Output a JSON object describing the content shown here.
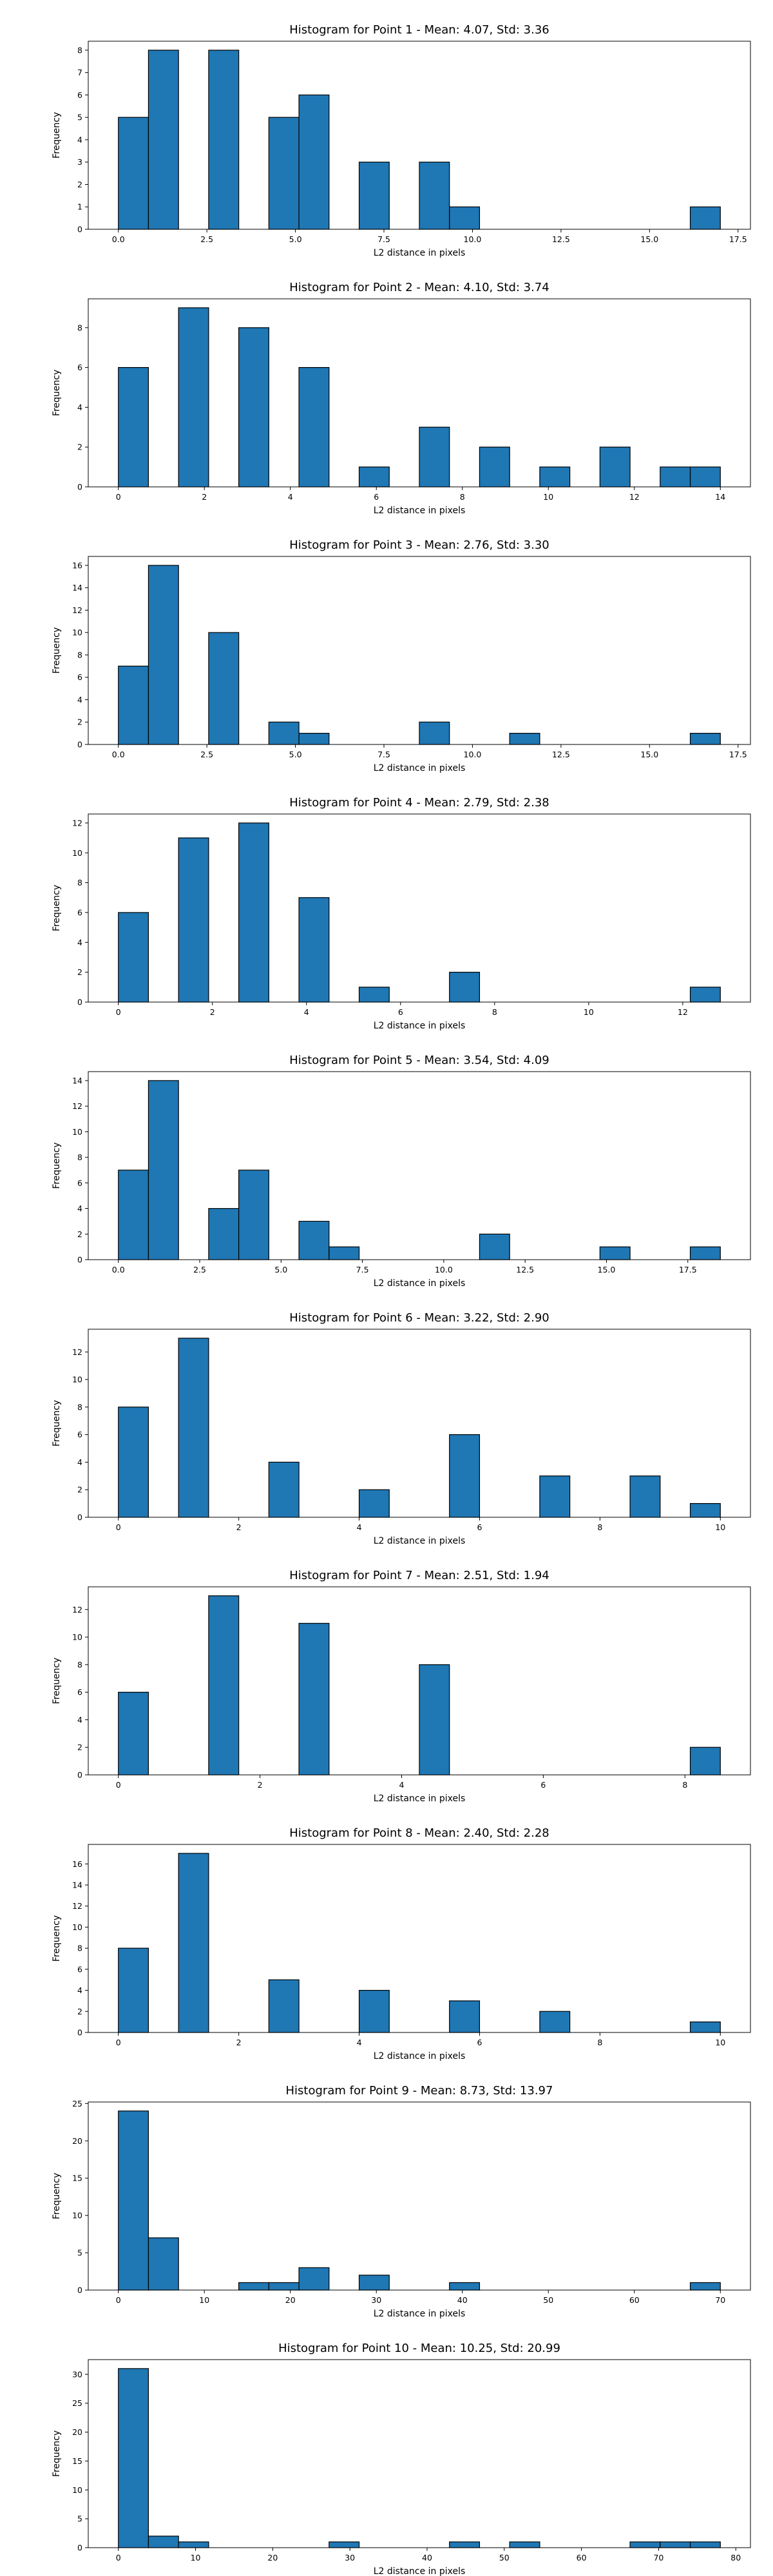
{
  "bar_color": "#1f77b4",
  "edge_color": "#000000",
  "chart_data": [
    {
      "type": "bar",
      "title": "Histogram for Point 1 - Mean: 4.07, Std: 3.36",
      "xlabel": "L2 distance in pixels",
      "ylabel": "Frequency",
      "xlim": [
        -0.85,
        17.85
      ],
      "ylim": [
        0,
        8.4
      ],
      "xticks": [
        0,
        2.5,
        5,
        7.5,
        10,
        12.5,
        15,
        17.5
      ],
      "xtick_labels": [
        "0.0",
        "2.5",
        "5.0",
        "7.5",
        "10.0",
        "12.5",
        "15.0",
        "17.5"
      ],
      "yticks": [
        0,
        1,
        2,
        3,
        4,
        5,
        6,
        7,
        8
      ],
      "bins": [
        [
          0,
          0.85,
          5
        ],
        [
          0.85,
          1.7,
          8
        ],
        [
          2.55,
          3.4,
          8
        ],
        [
          4.25,
          5.1,
          5
        ],
        [
          5.1,
          5.95,
          6
        ],
        [
          6.8,
          7.65,
          3
        ],
        [
          8.5,
          9.35,
          3
        ],
        [
          9.35,
          10.2,
          1
        ],
        [
          16.15,
          17.0,
          1
        ]
      ]
    },
    {
      "type": "bar",
      "title": "Histogram for Point 2 - Mean: 4.10, Std: 3.74",
      "xlabel": "L2 distance in pixels",
      "ylabel": "Frequency",
      "xlim": [
        -0.7,
        14.7
      ],
      "ylim": [
        0,
        9.45
      ],
      "xticks": [
        0,
        2,
        4,
        6,
        8,
        10,
        12,
        14
      ],
      "xtick_labels": [
        "0",
        "2",
        "4",
        "6",
        "8",
        "10",
        "12",
        "14"
      ],
      "yticks": [
        0,
        2,
        4,
        6,
        8
      ],
      "bins": [
        [
          0,
          0.7,
          6
        ],
        [
          1.4,
          2.1,
          9
        ],
        [
          2.8,
          3.5,
          8
        ],
        [
          4.2,
          4.9,
          6
        ],
        [
          5.6,
          6.3,
          1
        ],
        [
          7.0,
          7.7,
          3
        ],
        [
          8.4,
          9.1,
          2
        ],
        [
          9.8,
          10.5,
          1
        ],
        [
          11.2,
          11.9,
          2
        ],
        [
          12.6,
          13.3,
          1
        ],
        [
          13.3,
          14.0,
          1
        ]
      ]
    },
    {
      "type": "bar",
      "title": "Histogram for Point 3 - Mean: 2.76, Std: 3.30",
      "xlabel": "L2 distance in pixels",
      "ylabel": "Frequency",
      "xlim": [
        -0.85,
        17.85
      ],
      "ylim": [
        0,
        16.8
      ],
      "xticks": [
        0,
        2.5,
        5,
        7.5,
        10,
        12.5,
        15,
        17.5
      ],
      "xtick_labels": [
        "0.0",
        "2.5",
        "5.0",
        "7.5",
        "10.0",
        "12.5",
        "15.0",
        "17.5"
      ],
      "yticks": [
        0,
        2,
        4,
        6,
        8,
        10,
        12,
        14,
        16
      ],
      "bins": [
        [
          0,
          0.85,
          7
        ],
        [
          0.85,
          1.7,
          16
        ],
        [
          2.55,
          3.4,
          10
        ],
        [
          4.25,
          5.1,
          2
        ],
        [
          5.1,
          5.95,
          1
        ],
        [
          8.5,
          9.35,
          2
        ],
        [
          11.05,
          11.9,
          1
        ],
        [
          16.15,
          17.0,
          1
        ]
      ]
    },
    {
      "type": "bar",
      "title": "Histogram for Point 4 - Mean: 2.79, Std: 2.38",
      "xlabel": "L2 distance in pixels",
      "ylabel": "Frequency",
      "xlim": [
        -0.64,
        13.44
      ],
      "ylim": [
        0,
        12.6
      ],
      "xticks": [
        0,
        2,
        4,
        6,
        8,
        10,
        12
      ],
      "xtick_labels": [
        "0",
        "2",
        "4",
        "6",
        "8",
        "10",
        "12"
      ],
      "yticks": [
        0,
        2,
        4,
        6,
        8,
        10,
        12
      ],
      "bins": [
        [
          0,
          0.64,
          6
        ],
        [
          1.28,
          1.92,
          11
        ],
        [
          2.56,
          3.2,
          12
        ],
        [
          3.84,
          4.48,
          7
        ],
        [
          5.12,
          5.76,
          1
        ],
        [
          7.04,
          7.68,
          2
        ],
        [
          12.16,
          12.8,
          1
        ]
      ]
    },
    {
      "type": "bar",
      "title": "Histogram for Point 5 - Mean: 3.54, Std: 4.09",
      "xlabel": "L2 distance in pixels",
      "ylabel": "Frequency",
      "xlim": [
        -0.925,
        19.425
      ],
      "ylim": [
        0,
        14.7
      ],
      "xticks": [
        0,
        2.5,
        5,
        7.5,
        10,
        12.5,
        15,
        17.5
      ],
      "xtick_labels": [
        "0.0",
        "2.5",
        "5.0",
        "7.5",
        "10.0",
        "12.5",
        "15.0",
        "17.5"
      ],
      "yticks": [
        0,
        2,
        4,
        6,
        8,
        10,
        12,
        14
      ],
      "bins": [
        [
          0,
          0.925,
          7
        ],
        [
          0.925,
          1.85,
          14
        ],
        [
          2.775,
          3.7,
          4
        ],
        [
          3.7,
          4.625,
          7
        ],
        [
          5.55,
          6.475,
          3
        ],
        [
          6.475,
          7.4,
          1
        ],
        [
          11.1,
          12.025,
          2
        ],
        [
          14.8,
          15.725,
          1
        ],
        [
          17.575,
          18.5,
          1
        ]
      ]
    },
    {
      "type": "bar",
      "title": "Histogram for Point 6 - Mean: 3.22, Std: 2.90",
      "xlabel": "L2 distance in pixels",
      "ylabel": "Frequency",
      "xlim": [
        -0.5,
        10.5
      ],
      "ylim": [
        0,
        13.65
      ],
      "xticks": [
        0,
        2,
        4,
        6,
        8,
        10
      ],
      "xtick_labels": [
        "0",
        "2",
        "4",
        "6",
        "8",
        "10"
      ],
      "yticks": [
        0,
        2,
        4,
        6,
        8,
        10,
        12
      ],
      "bins": [
        [
          0,
          0.5,
          8
        ],
        [
          1.0,
          1.5,
          13
        ],
        [
          2.5,
          3.0,
          4
        ],
        [
          4.0,
          4.5,
          2
        ],
        [
          5.5,
          6.0,
          6
        ],
        [
          7.0,
          7.5,
          3
        ],
        [
          8.5,
          9.0,
          3
        ],
        [
          9.5,
          10.0,
          1
        ]
      ]
    },
    {
      "type": "bar",
      "title": "Histogram for Point 7 - Mean: 2.51, Std: 1.94",
      "xlabel": "L2 distance in pixels",
      "ylabel": "Frequency",
      "xlim": [
        -0.425,
        8.925
      ],
      "ylim": [
        0,
        13.65
      ],
      "xticks": [
        0,
        2,
        4,
        6,
        8
      ],
      "xtick_labels": [
        "0",
        "2",
        "4",
        "6",
        "8"
      ],
      "yticks": [
        0,
        2,
        4,
        6,
        8,
        10,
        12
      ],
      "bins": [
        [
          0,
          0.425,
          6
        ],
        [
          1.275,
          1.7,
          13
        ],
        [
          2.55,
          2.975,
          11
        ],
        [
          4.25,
          4.675,
          8
        ],
        [
          8.075,
          8.5,
          2
        ]
      ]
    },
    {
      "type": "bar",
      "title": "Histogram for Point 8 - Mean: 2.40, Std: 2.28",
      "xlabel": "L2 distance in pixels",
      "ylabel": "Frequency",
      "xlim": [
        -0.5,
        10.5
      ],
      "ylim": [
        0,
        17.85
      ],
      "xticks": [
        0,
        2,
        4,
        6,
        8,
        10
      ],
      "xtick_labels": [
        "0",
        "2",
        "4",
        "6",
        "8",
        "10"
      ],
      "yticks": [
        0,
        2,
        4,
        6,
        8,
        10,
        12,
        14,
        16
      ],
      "bins": [
        [
          0,
          0.5,
          8
        ],
        [
          1.0,
          1.5,
          17
        ],
        [
          2.5,
          3.0,
          5
        ],
        [
          4.0,
          4.5,
          4
        ],
        [
          5.5,
          6.0,
          3
        ],
        [
          7.0,
          7.5,
          2
        ],
        [
          9.5,
          10.0,
          1
        ]
      ]
    },
    {
      "type": "bar",
      "title": "Histogram for Point 9 - Mean: 8.73, Std: 13.97",
      "xlabel": "L2 distance in pixels",
      "ylabel": "Frequency",
      "xlim": [
        -3.5,
        73.5
      ],
      "ylim": [
        0,
        25.2
      ],
      "xticks": [
        0,
        10,
        20,
        30,
        40,
        50,
        60,
        70
      ],
      "xtick_labels": [
        "0",
        "10",
        "20",
        "30",
        "40",
        "50",
        "60",
        "70"
      ],
      "yticks": [
        0,
        5,
        10,
        15,
        20,
        25
      ],
      "bins": [
        [
          0,
          3.5,
          24
        ],
        [
          3.5,
          7.0,
          7
        ],
        [
          14.0,
          17.5,
          1
        ],
        [
          17.5,
          21.0,
          1
        ],
        [
          21.0,
          24.5,
          3
        ],
        [
          28.0,
          31.5,
          2
        ],
        [
          38.5,
          42.0,
          1
        ],
        [
          66.5,
          70.0,
          1
        ]
      ]
    },
    {
      "type": "bar",
      "title": "Histogram for Point 10 - Mean: 10.25, Std: 20.99",
      "xlabel": "L2 distance in pixels",
      "ylabel": "Frequency",
      "xlim": [
        -3.9,
        81.9
      ],
      "ylim": [
        0,
        32.55
      ],
      "xticks": [
        0,
        10,
        20,
        30,
        40,
        50,
        60,
        70,
        80
      ],
      "xtick_labels": [
        "0",
        "10",
        "20",
        "30",
        "40",
        "50",
        "60",
        "70",
        "80"
      ],
      "yticks": [
        0,
        5,
        10,
        15,
        20,
        25,
        30
      ],
      "bins": [
        [
          0,
          3.9,
          31
        ],
        [
          3.9,
          7.8,
          2
        ],
        [
          7.8,
          11.7,
          1
        ],
        [
          27.3,
          31.2,
          1
        ],
        [
          42.9,
          46.8,
          1
        ],
        [
          50.7,
          54.6,
          1
        ],
        [
          66.3,
          70.2,
          1
        ],
        [
          70.2,
          74.1,
          1
        ],
        [
          74.1,
          78.0,
          1
        ]
      ]
    }
  ]
}
